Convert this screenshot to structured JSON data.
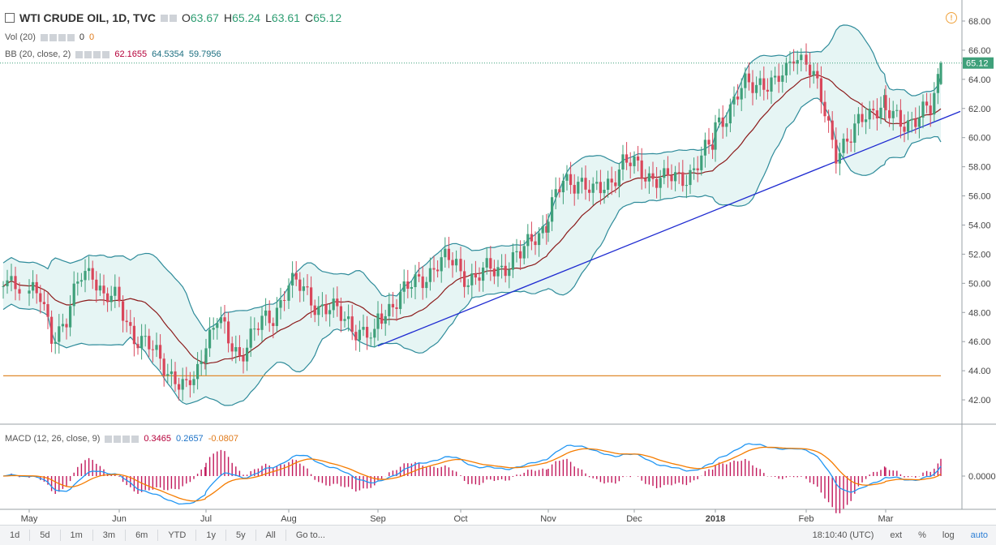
{
  "header": {
    "symbol": "WTI CRUDE OIL, 1D, TVC",
    "ohlc": [
      {
        "label": "O",
        "value": "63.67"
      },
      {
        "label": "H",
        "value": "65.24"
      },
      {
        "label": "L",
        "value": "63.61"
      },
      {
        "label": "C",
        "value": "65.12"
      }
    ]
  },
  "indicators": {
    "vol": {
      "name": "Vol (20)",
      "v1": "0",
      "v2": "0"
    },
    "bb": {
      "name": "BB (20, close, 2)",
      "v1": "62.1655",
      "v2": "64.5354",
      "v3": "59.7956"
    },
    "macd": {
      "name": "MACD (12, 26, close, 9)",
      "v1": "0.3465",
      "v2": "0.2657",
      "v3": "-0.0807"
    }
  },
  "last_price_label": "65.12",
  "macd_zero_label": "0.0000",
  "bottombar": {
    "timeframes": [
      "1d",
      "5d",
      "1m",
      "3m",
      "6m",
      "YTD",
      "1y",
      "5y",
      "All",
      "Go to..."
    ],
    "time": "18:10:40 (UTC)",
    "right": [
      "ext",
      "%",
      "log",
      "auto"
    ]
  },
  "colors": {
    "up": "#3fa07a",
    "down": "#d9475b",
    "bb_band": "#2e8b9a",
    "bb_basis": "#8b1a1a",
    "trendline": "#1f2bd1",
    "support": "#e08a2e",
    "macd_line": "#2196f3",
    "signal_line": "#f57c00",
    "histogram": "#c2185b"
  },
  "chart_data": [
    {
      "type": "candlestick",
      "title": "WTI CRUDE OIL, 1D, TVC",
      "ylim": [
        40.5,
        69
      ],
      "y_ticks": [
        "42.00",
        "44.00",
        "46.00",
        "48.00",
        "50.00",
        "52.00",
        "54.00",
        "56.00",
        "58.00",
        "60.00",
        "62.00",
        "64.00",
        "66.00",
        "68.00"
      ],
      "x_tick_labels": [
        "May",
        "Jun",
        "Jul",
        "Aug",
        "Sep",
        "Oct",
        "Nov",
        "Dec",
        "2018",
        "Feb",
        "Mar"
      ],
      "months": [
        {
          "label": "May",
          "path": [
            [
              0,
              49.5
            ],
            [
              3,
              48.8
            ],
            [
              6,
              46.5
            ],
            [
              10,
              47.5
            ],
            [
              14,
              50.5
            ],
            [
              17,
              51
            ],
            [
              20,
              49
            ],
            [
              23,
              48.8
            ]
          ]
        },
        {
          "label": "Jun",
          "path": [
            [
              0,
              48.5
            ],
            [
              4,
              46.5
            ],
            [
              8,
              45.5
            ],
            [
              12,
              44.5
            ],
            [
              15,
              43.5
            ],
            [
              18,
              42.5
            ],
            [
              21,
              44
            ],
            [
              23,
              45.5
            ]
          ]
        },
        {
          "label": "Jul",
          "path": [
            [
              0,
              46
            ],
            [
              3,
              47.5
            ],
            [
              6,
              46
            ],
            [
              9,
              45.2
            ],
            [
              12,
              46.3
            ],
            [
              15,
              47.2
            ],
            [
              18,
              47.8
            ],
            [
              21,
              49.5
            ],
            [
              23,
              50
            ]
          ]
        },
        {
          "label": "Aug",
          "path": [
            [
              0,
              50
            ],
            [
              4,
              49.5
            ],
            [
              8,
              48.5
            ],
            [
              12,
              48
            ],
            [
              16,
              47.5
            ],
            [
              20,
              46.5
            ],
            [
              23,
              46
            ]
          ]
        },
        {
          "label": "Sep",
          "path": [
            [
              0,
              47.5
            ],
            [
              4,
              48.8
            ],
            [
              8,
              49.5
            ],
            [
              12,
              50.5
            ],
            [
              16,
              51.3
            ],
            [
              20,
              51.5
            ],
            [
              23,
              51.2
            ]
          ]
        },
        {
          "label": "Oct",
          "path": [
            [
              0,
              50.8
            ],
            [
              4,
              50.2
            ],
            [
              8,
              51
            ],
            [
              12,
              51.3
            ],
            [
              16,
              51.8
            ],
            [
              20,
              53.5
            ],
            [
              23,
              54
            ]
          ]
        },
        {
          "label": "Nov",
          "path": [
            [
              0,
              54.5
            ],
            [
              4,
              57
            ],
            [
              8,
              57.2
            ],
            [
              12,
              56
            ],
            [
              16,
              57
            ],
            [
              20,
              58.2
            ],
            [
              23,
              58
            ]
          ]
        },
        {
          "label": "Dec",
          "path": [
            [
              0,
              58
            ],
            [
              4,
              57.5
            ],
            [
              8,
              57
            ],
            [
              12,
              57.3
            ],
            [
              16,
              57.8
            ],
            [
              20,
              59.2
            ],
            [
              23,
              60.3
            ]
          ]
        },
        {
          "label": "2018",
          "path": [
            [
              0,
              61
            ],
            [
              4,
              62
            ],
            [
              8,
              63.5
            ],
            [
              12,
              64
            ],
            [
              16,
              63.5
            ],
            [
              19,
              64.5
            ],
            [
              21,
              66
            ],
            [
              23,
              65.5
            ]
          ]
        },
        {
          "label": "Feb",
          "path": [
            [
              0,
              65.3
            ],
            [
              4,
              62.5
            ],
            [
              8,
              59.2
            ],
            [
              12,
              59.8
            ],
            [
              16,
              61.8
            ],
            [
              20,
              62.3
            ],
            [
              23,
              62
            ]
          ]
        },
        {
          "label": "Mar",
          "path": [
            [
              0,
              61.5
            ],
            [
              4,
              61.2
            ],
            [
              8,
              61.3
            ],
            [
              12,
              61.8
            ],
            [
              15,
              65.12
            ]
          ]
        }
      ],
      "last": {
        "open": 63.67,
        "high": 65.24,
        "low": 63.61,
        "close": 65.12
      },
      "support_level": 43.65,
      "trendline": {
        "from": [
          "Sep",
          45.7
        ],
        "to": [
          "Mar",
          61.5
        ]
      }
    },
    {
      "type": "macd",
      "series": [
        {
          "name": "MACD",
          "values": []
        },
        {
          "name": "Signal",
          "values": []
        },
        {
          "name": "Histogram",
          "values": []
        }
      ]
    }
  ]
}
